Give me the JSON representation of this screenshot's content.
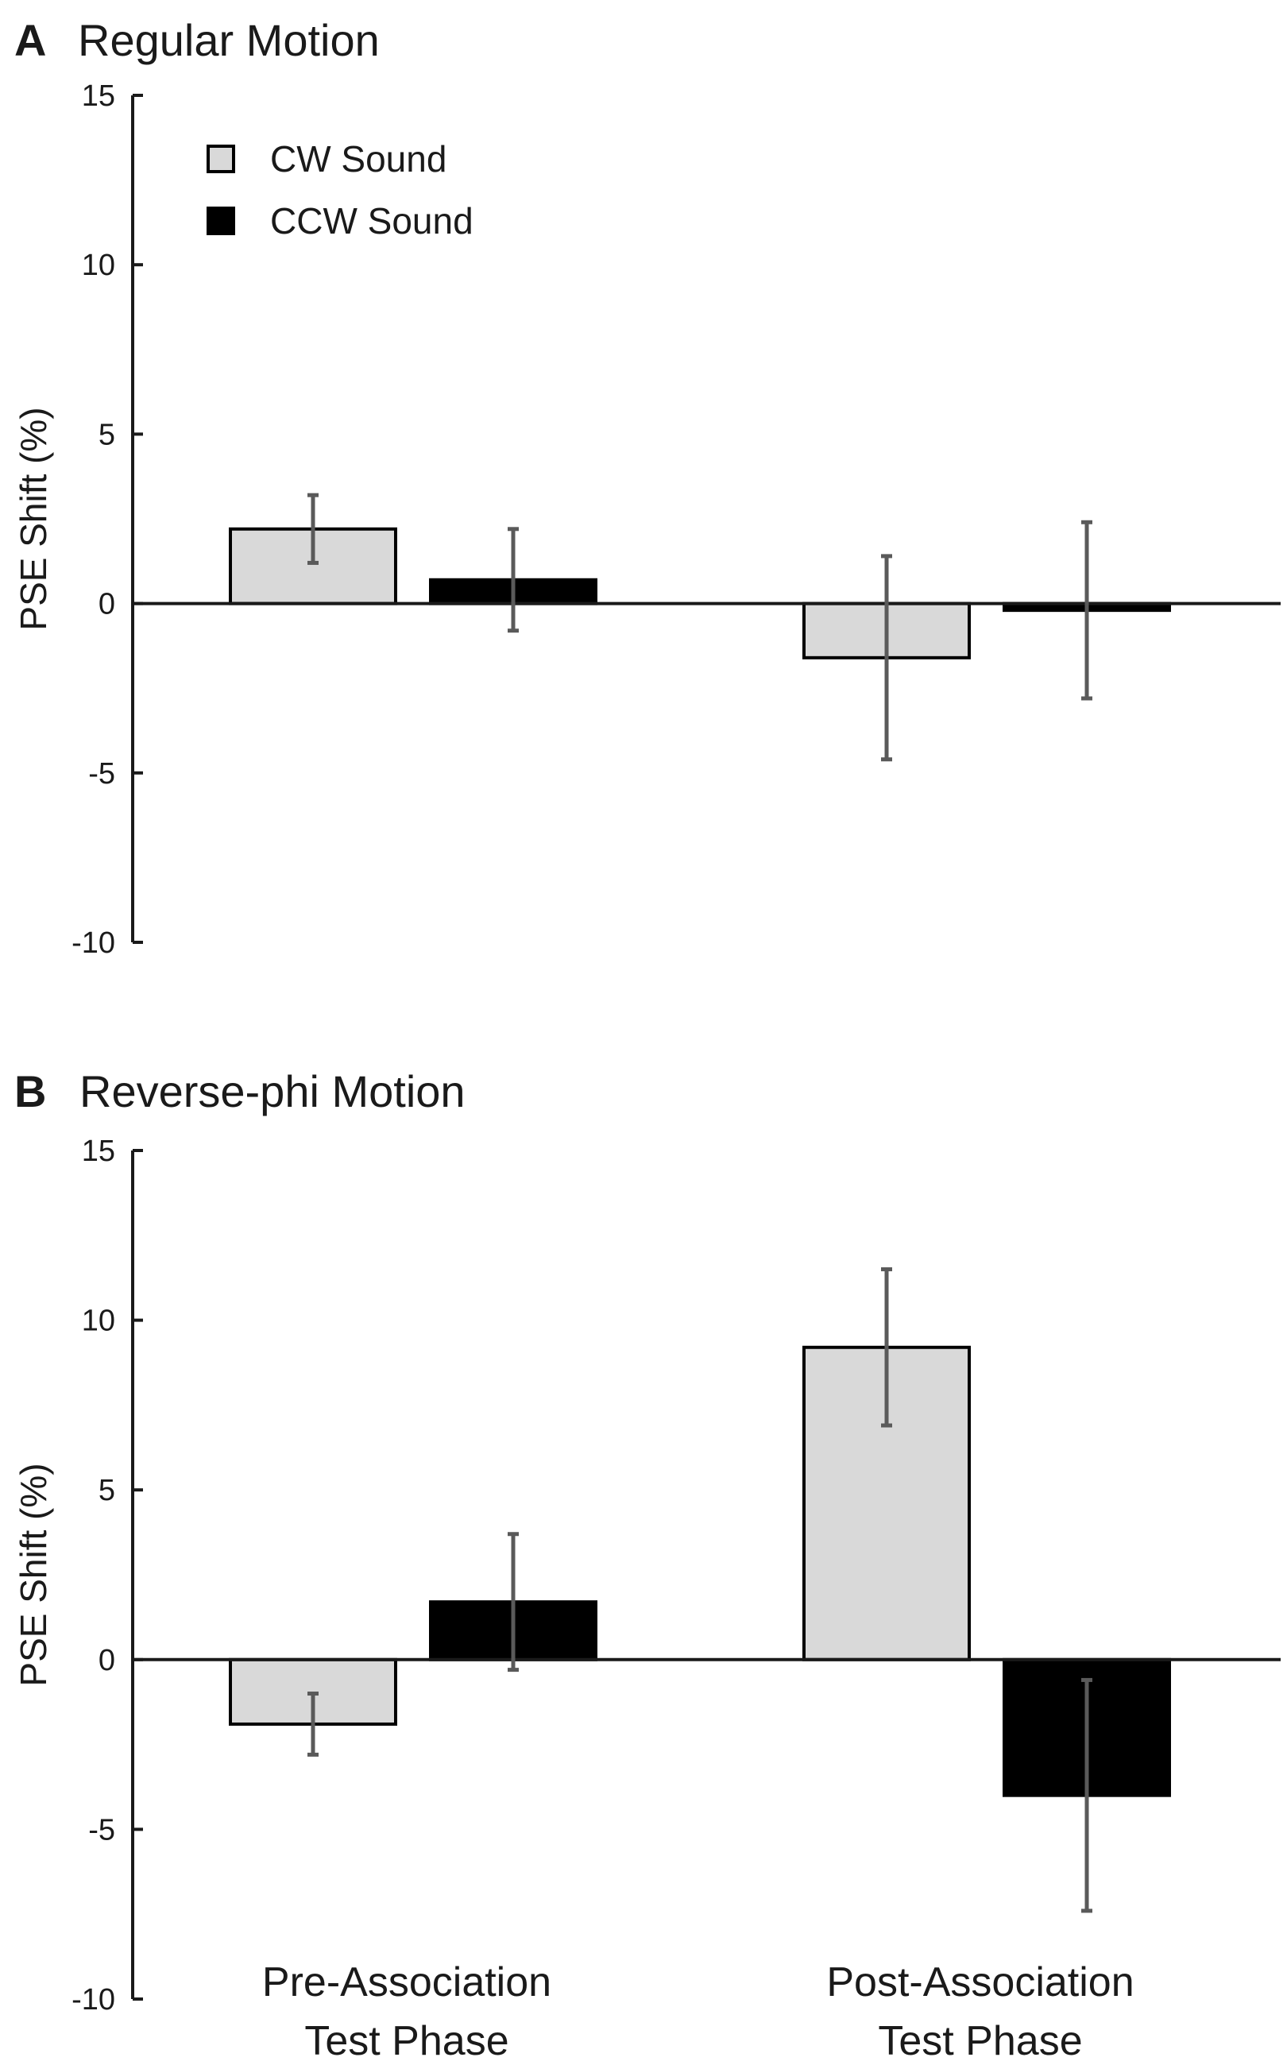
{
  "chart_data": [
    {
      "panel": "A",
      "type": "bar",
      "title": "Regular Motion",
      "ylabel": "PSE Shift (%)",
      "xlabel": "",
      "ylim": [
        -10,
        15
      ],
      "yticks": [
        -10,
        -5,
        0,
        5,
        10,
        15
      ],
      "categories": [
        "Pre-Association\nTest Phase",
        "Post-Association\nTest Phase"
      ],
      "show_category_labels": false,
      "legend": {
        "placement": "top-left",
        "entries": [
          "CW Sound",
          "CCW Sound"
        ]
      },
      "series": [
        {
          "name": "CW Sound",
          "color": "#d9d9d9",
          "values": [
            2.2,
            -1.6
          ],
          "error": [
            1.0,
            3.0
          ]
        },
        {
          "name": "CCW Sound",
          "color": "#000000",
          "values": [
            0.7,
            -0.2
          ],
          "error": [
            1.5,
            2.6
          ]
        }
      ]
    },
    {
      "panel": "B",
      "type": "bar",
      "title": "Reverse-phi Motion",
      "ylabel": "PSE Shift (%)",
      "xlabel": "",
      "ylim": [
        -10,
        15
      ],
      "yticks": [
        -10,
        -5,
        0,
        5,
        10,
        15
      ],
      "categories": [
        "Pre-Association\nTest Phase",
        "Post-Association\nTest Phase"
      ],
      "show_category_labels": true,
      "series": [
        {
          "name": "CW Sound",
          "color": "#d9d9d9",
          "values": [
            -1.9,
            9.2
          ],
          "error": [
            0.9,
            2.3
          ]
        },
        {
          "name": "CCW Sound",
          "color": "#000000",
          "values": [
            1.7,
            -4.0
          ],
          "error": [
            2.0,
            3.4
          ]
        }
      ]
    }
  ]
}
